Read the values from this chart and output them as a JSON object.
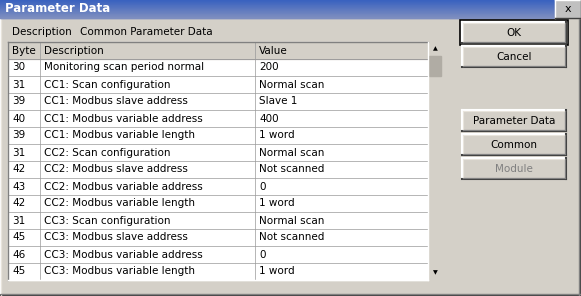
{
  "title": "Parameter Data",
  "description_label": "Description",
  "description_value": "Common Parameter Data",
  "col_headers": [
    "Byte",
    "Description",
    "Value"
  ],
  "rows": [
    [
      "30",
      "Monitoring scan period normal",
      "200"
    ],
    [
      "31",
      "CC1: Scan configuration",
      "Normal scan"
    ],
    [
      "39",
      "CC1: Modbus slave address",
      "Slave 1"
    ],
    [
      "40",
      "CC1: Modbus variable address",
      "400"
    ],
    [
      "39",
      "CC1: Modbus variable length",
      "1 word"
    ],
    [
      "31",
      "CC2: Scan configuration",
      "Normal scan"
    ],
    [
      "42",
      "CC2: Modbus slave address",
      "Not scanned"
    ],
    [
      "43",
      "CC2: Modbus variable address",
      "0"
    ],
    [
      "42",
      "CC2: Modbus variable length",
      "1 word"
    ],
    [
      "31",
      "CC3: Scan configuration",
      "Normal scan"
    ],
    [
      "45",
      "CC3: Modbus slave address",
      "Not scanned"
    ],
    [
      "46",
      "CC3: Modbus variable address",
      "0"
    ],
    [
      "45",
      "CC3: Modbus variable length",
      "1 word"
    ]
  ],
  "buttons": [
    "OK",
    "Cancel",
    "Parameter Data",
    "Common",
    "Module"
  ],
  "bg_color": "#d4d0c8",
  "title_bar_start": "#3a60c0",
  "title_bar_end": "#8090c0",
  "title_bar_text_color": "#ffffff",
  "table_bg": "#ffffff",
  "header_bg": "#d4d0c8",
  "grid_color": "#999999",
  "button_disabled": "Module",
  "font_size": 7.5,
  "title_font_size": 8.5
}
